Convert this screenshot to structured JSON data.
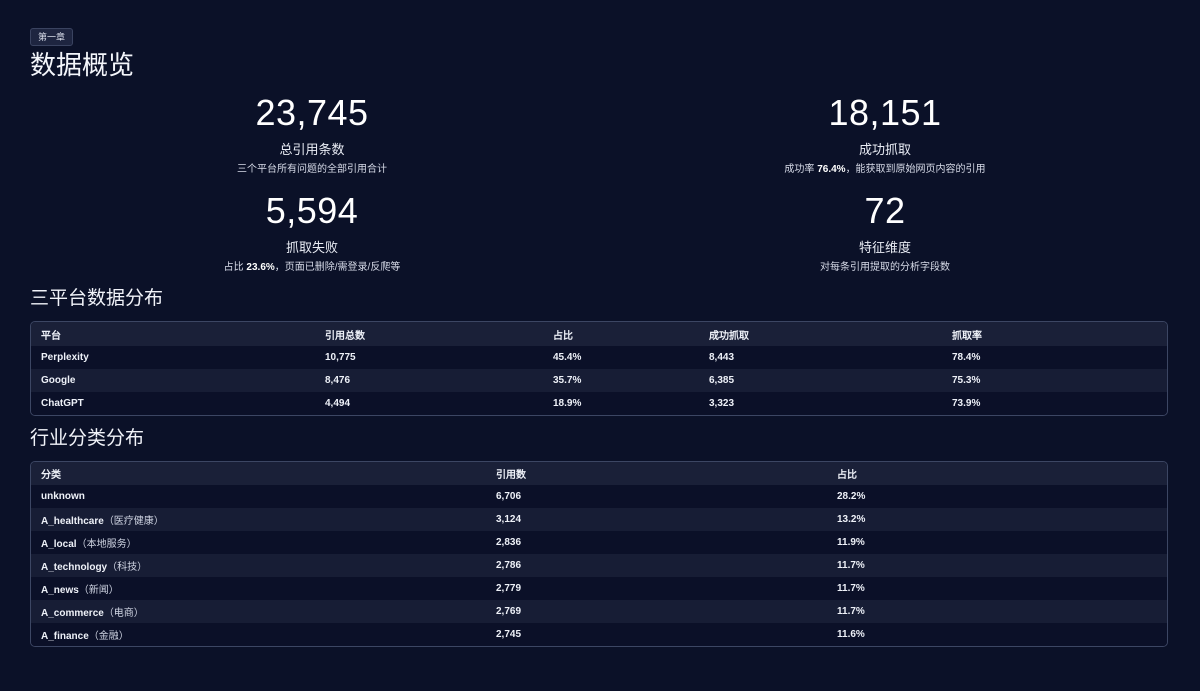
{
  "chapter_badge": "第一章",
  "page_title": "数据概览",
  "stats": [
    {
      "value": "23,745",
      "label": "总引用条数",
      "desc_pre": "三个平台所有问题的全部引用合计",
      "desc_bold": "",
      "desc_post": ""
    },
    {
      "value": "18,151",
      "label": "成功抓取",
      "desc_pre": "成功率 ",
      "desc_bold": "76.4%",
      "desc_post": "，能获取到原始网页内容的引用"
    },
    {
      "value": "5,594",
      "label": "抓取失败",
      "desc_pre": "占比 ",
      "desc_bold": "23.6%",
      "desc_post": "，页面已删除/需登录/反爬等"
    },
    {
      "value": "72",
      "label": "特征维度",
      "desc_pre": "对每条引用提取的分析字段数",
      "desc_bold": "",
      "desc_post": ""
    }
  ],
  "platform_section": {
    "title": "三平台数据分布",
    "columns": [
      "平台",
      "引用总数",
      "占比",
      "成功抓取",
      "抓取率"
    ],
    "rows": [
      [
        "Perplexity",
        "10,775",
        "45.4%",
        "8,443",
        "78.4%"
      ],
      [
        "Google",
        "8,476",
        "35.7%",
        "6,385",
        "75.3%"
      ],
      [
        "ChatGPT",
        "4,494",
        "18.9%",
        "3,323",
        "73.9%"
      ]
    ]
  },
  "industry_section": {
    "title": "行业分类分布",
    "columns": [
      "分类",
      "引用数",
      "占比"
    ],
    "rows": [
      {
        "name": "unknown",
        "note": "",
        "count": "6,706",
        "share": "28.2%"
      },
      {
        "name": "A_healthcare",
        "note": "（医疗健康）",
        "count": "3,124",
        "share": "13.2%"
      },
      {
        "name": "A_local",
        "note": "（本地服务）",
        "count": "2,836",
        "share": "11.9%"
      },
      {
        "name": "A_technology",
        "note": "（科技）",
        "count": "2,786",
        "share": "11.7%"
      },
      {
        "name": "A_news",
        "note": "（新闻）",
        "count": "2,779",
        "share": "11.7%"
      },
      {
        "name": "A_commerce",
        "note": "（电商）",
        "count": "2,769",
        "share": "11.7%"
      },
      {
        "name": "A_finance",
        "note": "（金融）",
        "count": "2,745",
        "share": "11.6%"
      }
    ]
  },
  "colors": {
    "background": "#0b1128",
    "text": "#eef1f8",
    "table_border": "#3c4663",
    "table_header": "#1a2038",
    "row_alt": "#171d35"
  }
}
